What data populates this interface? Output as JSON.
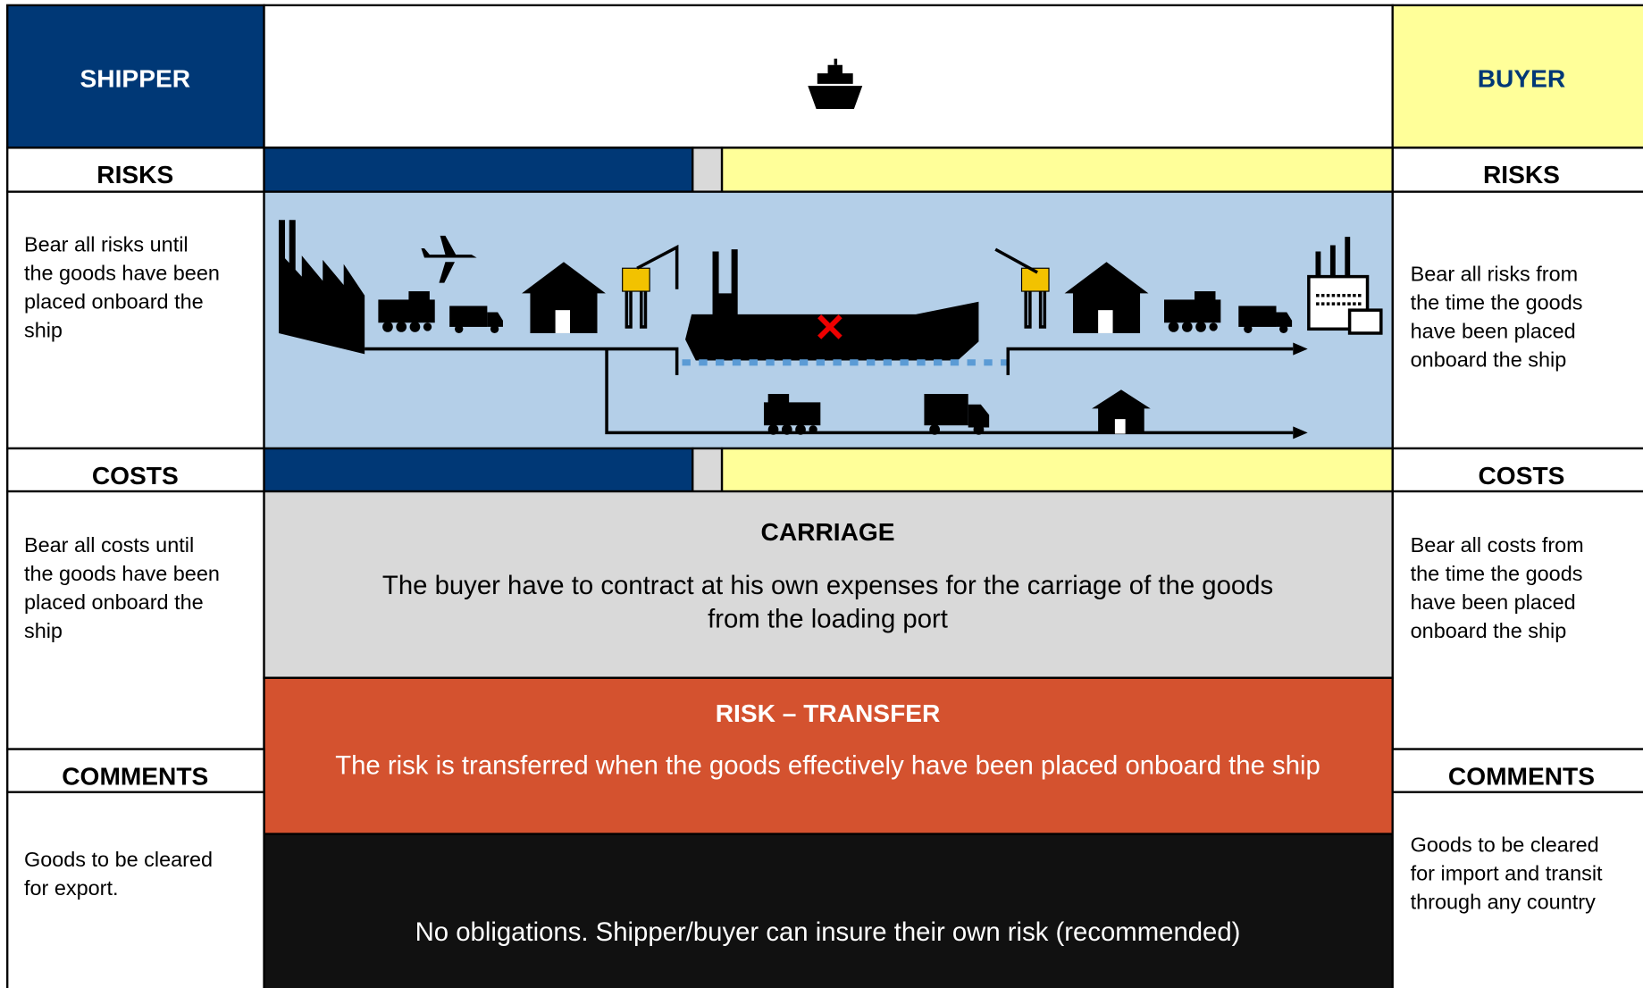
{
  "shipper": {
    "title": "SHIPPER",
    "risks_heading": "RISKS",
    "risks": [
      "Bear all risks until",
      "the goods have been",
      "placed onboard the",
      "ship"
    ],
    "costs_heading": "COSTS",
    "costs": [
      "Bear all costs until",
      "the goods have been",
      "placed onboard the",
      "ship"
    ],
    "comments_heading": "COMMENTS",
    "comments": [
      "Goods to be cleared",
      "for export."
    ]
  },
  "buyer": {
    "title": "BUYER",
    "risks_heading": "RISKS",
    "risks": [
      "Bear all risks from",
      "the time the goods",
      "have been placed",
      "onboard the ship"
    ],
    "costs_heading": "COSTS",
    "costs": [
      "Bear all costs from",
      "the time the goods",
      "have been placed",
      "onboard the ship"
    ],
    "comments_heading": "COMMENTS",
    "comments": [
      "Goods to be cleared",
      "for import and transit",
      "through any country"
    ]
  },
  "carriage": {
    "title": "CARRIAGE",
    "text": [
      "The buyer have to contract at his own expenses for the carriage of the goods",
      "from the loading port"
    ]
  },
  "risk_transfer": {
    "title": "RISK – TRANSFER",
    "text": "The risk is transferred when the goods effectively have been placed onboard the ship"
  },
  "insurance": {
    "text": "No obligations. Shipper/buyer can insure their own risk (recommended)"
  }
}
